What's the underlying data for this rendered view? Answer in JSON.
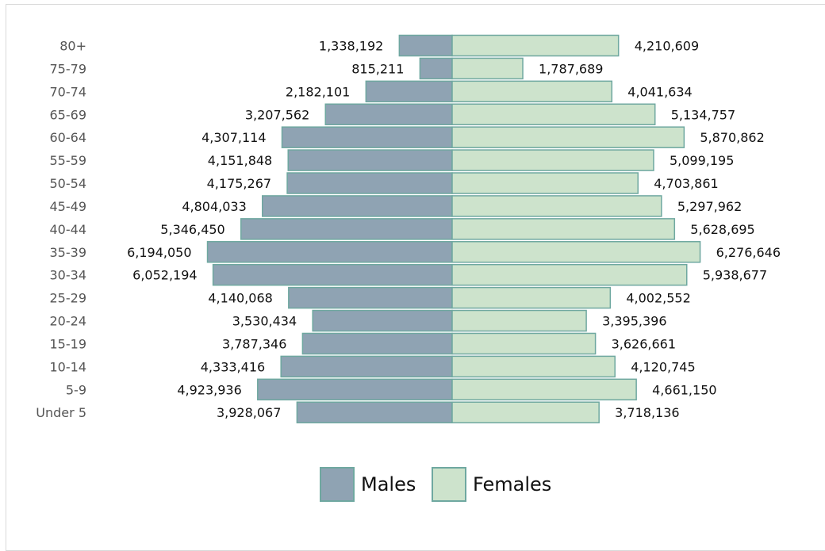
{
  "chart_data": {
    "type": "bar",
    "orientation": "horizontal-diverging",
    "categories": [
      "80+",
      "75-79",
      "70-74",
      "65-69",
      "60-64",
      "55-59",
      "50-54",
      "45-49",
      "40-44",
      "35-39",
      "30-34",
      "25-29",
      "20-24",
      "15-19",
      "10-14",
      "5-9",
      "Under 5"
    ],
    "series": [
      {
        "name": "Males",
        "color": "#8fa3b3",
        "values": [
          1338192,
          815211,
          2182101,
          3207562,
          4307114,
          4151848,
          4175267,
          4804033,
          5346450,
          6194050,
          6052194,
          4140068,
          3530434,
          3787346,
          4333416,
          4923936,
          3928067
        ],
        "labels": [
          "1,338,192",
          "815,211",
          "2,182,101",
          "3,207,562",
          "4,307,114",
          "4,151,848",
          "4,175,267",
          "4,804,033",
          "5,346,450",
          "6,194,050",
          "6,052,194",
          "4,140,068",
          "3,530,434",
          "3,787,346",
          "4,333,416",
          "4,923,936",
          "3,928,067"
        ]
      },
      {
        "name": "Females",
        "color": "#cde3cc",
        "values": [
          4210609,
          1787689,
          4041634,
          5134757,
          5870862,
          5099195,
          4703861,
          5297962,
          5628695,
          6276646,
          5938677,
          4002552,
          3395396,
          3626661,
          4120745,
          4661150,
          3718136
        ],
        "labels": [
          "4,210,609",
          "1,787,689",
          "4,041,634",
          "5,134,757",
          "5,870,862",
          "5,099,195",
          "4,703,861",
          "5,297,962",
          "5,628,695",
          "6,276,646",
          "5,938,677",
          "4,002,552",
          "3,395,396",
          "3,626,661",
          "4,120,745",
          "4,661,150",
          "3,718,136"
        ]
      }
    ],
    "legend": {
      "position": "bottom-center"
    },
    "grid": false,
    "stroke_color": "#6fa8a0"
  }
}
